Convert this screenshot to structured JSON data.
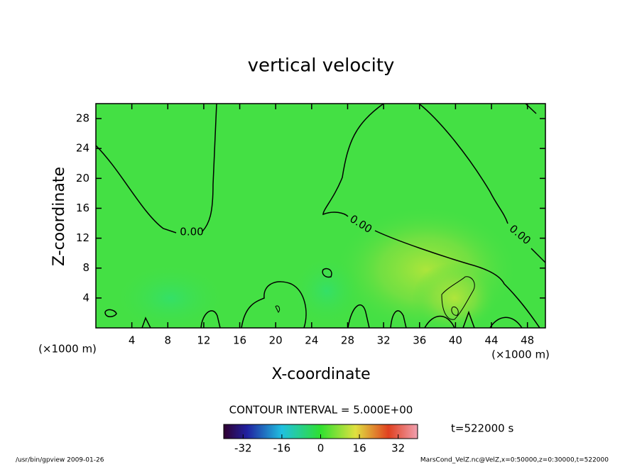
{
  "chart_data": {
    "type": "contour",
    "title": "vertical velocity",
    "x_label": "X-coordinate",
    "y_label": "Z-coordinate",
    "x_unit": "(×1000 m)",
    "xlim": [
      0,
      50
    ],
    "xticks": [
      4,
      8,
      12,
      16,
      20,
      24,
      28,
      32,
      36,
      40,
      44,
      48
    ],
    "ylim": [
      0,
      30
    ],
    "yticks": [
      4,
      8,
      12,
      16,
      20,
      24,
      28
    ],
    "contour_labels": [
      "0.00",
      "0.00",
      "0.00"
    ],
    "contour_interval_text": "CONTOUR INTERVAL = 5.000E+00",
    "colorbar_lim": [
      -40,
      40
    ],
    "colorbar_ticks": [
      -32,
      -16,
      0,
      16,
      32
    ],
    "time_label": "t=522000 s",
    "footer_left": "/usr/bin/gpview  2009-01-26",
    "footer_right": "MarsCond_VelZ.nc@VelZ,x=0:50000,z=0:30000,t=522000"
  }
}
